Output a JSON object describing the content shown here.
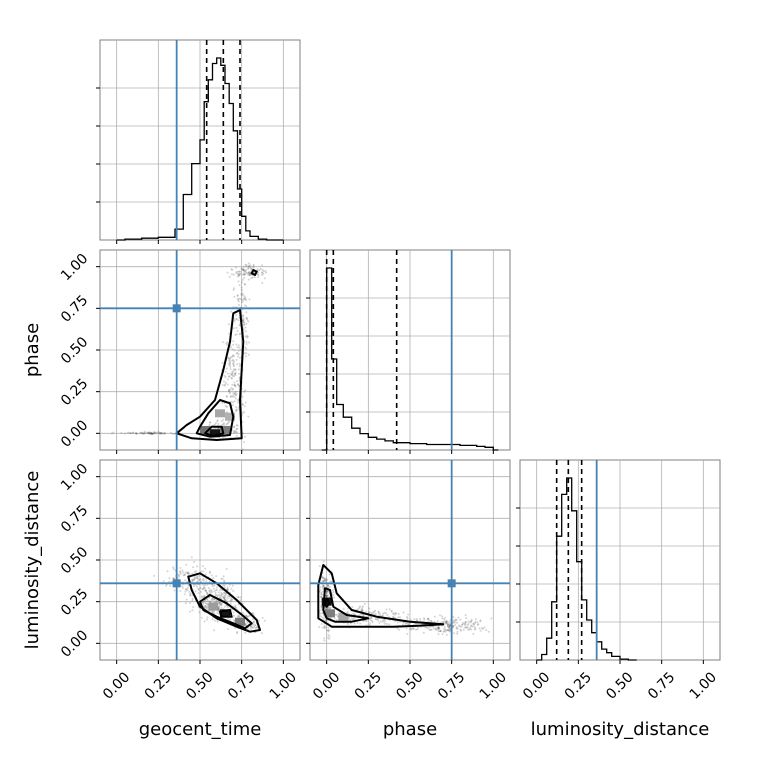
{
  "chart_data": {
    "type": "corner",
    "parameters": [
      "geocent_time",
      "phase",
      "luminosity_distance"
    ],
    "axis_range": [
      -0.1,
      1.1
    ],
    "ticks": [
      0.0,
      0.25,
      0.5,
      0.75,
      1.0
    ],
    "tick_labels": [
      "0.00",
      "0.25",
      "0.50",
      "0.75",
      "1.00"
    ],
    "grid": true,
    "truth_color": "#4682b4",
    "truths": {
      "geocent_time": 0.36,
      "phase": 0.75,
      "luminosity_distance": 0.36
    },
    "quantiles": {
      "geocent_time": [
        0.54,
        0.64,
        0.74
      ],
      "phase": [
        0.0,
        0.04,
        0.42
      ],
      "luminosity_distance": [
        0.12,
        0.19,
        0.27
      ]
    },
    "histograms": {
      "geocent_time": {
        "bin_edges": [
          0.0,
          0.05,
          0.1,
          0.15,
          0.2,
          0.25,
          0.3,
          0.35,
          0.4,
          0.45,
          0.5,
          0.525,
          0.55,
          0.575,
          0.6,
          0.625,
          0.65,
          0.675,
          0.7,
          0.725,
          0.75,
          0.775,
          0.8,
          0.85,
          0.9,
          0.95,
          1.0
        ],
        "counts": [
          0.0,
          0.005,
          0.005,
          0.01,
          0.01,
          0.015,
          0.015,
          0.06,
          0.25,
          0.42,
          0.55,
          0.76,
          0.88,
          0.97,
          1.0,
          0.96,
          0.86,
          0.75,
          0.6,
          0.28,
          0.13,
          0.05,
          0.02,
          0.005,
          0.0,
          0.0
        ]
      },
      "phase": {
        "bin_edges": [
          -0.03,
          0.0,
          0.03,
          0.06,
          0.1,
          0.15,
          0.2,
          0.25,
          0.3,
          0.35,
          0.4,
          0.5,
          0.6,
          0.7,
          0.8,
          0.9,
          0.95,
          1.0,
          1.03
        ],
        "counts": [
          0.0,
          1.0,
          0.5,
          0.25,
          0.18,
          0.12,
          0.09,
          0.07,
          0.06,
          0.05,
          0.04,
          0.035,
          0.03,
          0.03,
          0.025,
          0.02,
          0.015,
          0.0
        ]
      },
      "luminosity_distance": {
        "bin_edges": [
          0.0,
          0.03,
          0.06,
          0.09,
          0.12,
          0.15,
          0.18,
          0.21,
          0.24,
          0.27,
          0.3,
          0.33,
          0.36,
          0.39,
          0.42,
          0.45,
          0.5,
          0.55,
          0.6
        ],
        "counts": [
          0.0,
          0.03,
          0.12,
          0.32,
          0.68,
          0.91,
          1.0,
          0.82,
          0.54,
          0.33,
          0.22,
          0.15,
          0.1,
          0.06,
          0.04,
          0.02,
          0.005,
          0.0
        ]
      }
    },
    "panels_2d": [
      {
        "x": "geocent_time",
        "y": "phase",
        "sample_clusters": [
          {
            "cx": 0.62,
            "cy": 0.02,
            "sx": 0.07,
            "sy": 0.03,
            "n": 150
          },
          {
            "cx": 0.7,
            "cy": 0.3,
            "sx": 0.05,
            "sy": 0.22,
            "n": 220
          },
          {
            "cx": 0.75,
            "cy": 0.72,
            "sx": 0.04,
            "sy": 0.15,
            "n": 110
          },
          {
            "cx": 0.8,
            "cy": 0.97,
            "sx": 0.07,
            "sy": 0.03,
            "n": 100
          },
          {
            "cx": 0.2,
            "cy": 0.0,
            "sx": 0.12,
            "sy": 0.005,
            "n": 70
          }
        ],
        "contours": [
          [
            [
              0.36,
              0.0
            ],
            [
              0.45,
              -0.03
            ],
            [
              0.6,
              -0.04
            ],
            [
              0.75,
              -0.03
            ],
            [
              0.74,
              0.2
            ],
            [
              0.76,
              0.55
            ],
            [
              0.74,
              0.74
            ],
            [
              0.7,
              0.72
            ],
            [
              0.68,
              0.55
            ],
            [
              0.64,
              0.38
            ],
            [
              0.59,
              0.2
            ],
            [
              0.5,
              0.1
            ],
            [
              0.42,
              0.05
            ]
          ],
          [
            [
              0.48,
              0.0
            ],
            [
              0.56,
              -0.02
            ],
            [
              0.68,
              -0.01
            ],
            [
              0.7,
              0.1
            ],
            [
              0.68,
              0.18
            ],
            [
              0.62,
              0.2
            ],
            [
              0.55,
              0.12
            ],
            [
              0.5,
              0.04
            ]
          ],
          [
            [
              0.53,
              0.0
            ],
            [
              0.58,
              -0.015
            ],
            [
              0.64,
              0.0
            ],
            [
              0.63,
              0.04
            ],
            [
              0.57,
              0.04
            ]
          ],
          [
            [
              0.81,
              0.96
            ],
            [
              0.83,
              0.95
            ],
            [
              0.84,
              0.97
            ],
            [
              0.82,
              0.98
            ]
          ]
        ],
        "density_cells": [
          {
            "x": 0.59,
            "y": 0.0,
            "level": 1.0
          },
          {
            "x": 0.53,
            "y": 0.02,
            "level": 0.55
          },
          {
            "x": 0.65,
            "y": 0.02,
            "level": 0.5
          },
          {
            "x": 0.62,
            "y": 0.12,
            "level": 0.3
          },
          {
            "x": 0.68,
            "y": 0.1,
            "level": 0.25
          }
        ]
      },
      {
        "x": "geocent_time",
        "y": "luminosity_distance",
        "sample_clusters": [
          {
            "cx": 0.6,
            "cy": 0.25,
            "sx": 0.1,
            "sy": 0.08,
            "n": 300
          },
          {
            "cx": 0.45,
            "cy": 0.38,
            "sx": 0.12,
            "sy": 0.06,
            "n": 150
          },
          {
            "cx": 0.78,
            "cy": 0.12,
            "sx": 0.06,
            "sy": 0.04,
            "n": 100
          }
        ],
        "contours": [
          [
            [
              0.43,
              0.4
            ],
            [
              0.5,
              0.42
            ],
            [
              0.6,
              0.36
            ],
            [
              0.72,
              0.26
            ],
            [
              0.84,
              0.14
            ],
            [
              0.86,
              0.08
            ],
            [
              0.8,
              0.07
            ],
            [
              0.72,
              0.1
            ],
            [
              0.6,
              0.15
            ],
            [
              0.5,
              0.22
            ],
            [
              0.45,
              0.32
            ]
          ],
          [
            [
              0.5,
              0.25
            ],
            [
              0.56,
              0.29
            ],
            [
              0.66,
              0.24
            ],
            [
              0.74,
              0.18
            ],
            [
              0.81,
              0.12
            ],
            [
              0.77,
              0.09
            ],
            [
              0.7,
              0.12
            ],
            [
              0.6,
              0.16
            ],
            [
              0.52,
              0.2
            ]
          ],
          [
            [
              0.62,
              0.19
            ],
            [
              0.68,
              0.2
            ],
            [
              0.69,
              0.16
            ],
            [
              0.63,
              0.16
            ]
          ]
        ],
        "density_cells": [
          {
            "x": 0.65,
            "y": 0.18,
            "level": 1.0
          },
          {
            "x": 0.74,
            "y": 0.13,
            "level": 0.5
          },
          {
            "x": 0.58,
            "y": 0.22,
            "level": 0.35
          }
        ]
      },
      {
        "x": "phase",
        "y": "luminosity_distance",
        "sample_clusters": [
          {
            "cx": 0.0,
            "cy": 0.25,
            "sx": 0.03,
            "sy": 0.12,
            "n": 250
          },
          {
            "cx": 0.25,
            "cy": 0.16,
            "sx": 0.15,
            "sy": 0.04,
            "n": 180
          },
          {
            "cx": 0.7,
            "cy": 0.11,
            "sx": 0.18,
            "sy": 0.035,
            "n": 260
          }
        ],
        "contours": [
          [
            [
              -0.05,
              0.35
            ],
            [
              -0.02,
              0.47
            ],
            [
              0.03,
              0.42
            ],
            [
              0.06,
              0.3
            ],
            [
              0.15,
              0.2
            ],
            [
              0.3,
              0.16
            ],
            [
              0.5,
              0.13
            ],
            [
              0.7,
              0.115
            ],
            [
              0.55,
              0.105
            ],
            [
              0.4,
              0.1
            ],
            [
              0.2,
              0.1
            ],
            [
              0.03,
              0.1
            ],
            [
              -0.05,
              0.15
            ]
          ],
          [
            [
              -0.02,
              0.2
            ],
            [
              -0.01,
              0.33
            ],
            [
              0.02,
              0.32
            ],
            [
              0.04,
              0.22
            ],
            [
              0.12,
              0.17
            ],
            [
              0.25,
              0.15
            ],
            [
              0.15,
              0.13
            ],
            [
              0.05,
              0.13
            ],
            [
              0.0,
              0.15
            ]
          ],
          [
            [
              -0.01,
              0.23
            ],
            [
              0.0,
              0.27
            ],
            [
              0.015,
              0.24
            ],
            [
              0.0,
              0.22
            ]
          ]
        ],
        "density_cells": [
          {
            "x": 0.0,
            "y": 0.25,
            "level": 1.0
          },
          {
            "x": 0.02,
            "y": 0.18,
            "level": 0.5
          },
          {
            "x": 0.1,
            "y": 0.16,
            "level": 0.3
          }
        ]
      }
    ]
  }
}
